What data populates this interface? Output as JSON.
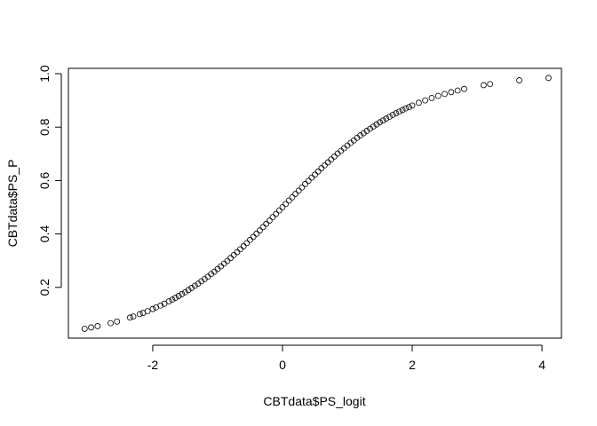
{
  "chart_data": {
    "type": "scatter",
    "title": "",
    "xlabel": "CBTdata$PS_logit",
    "ylabel": "CBTdata$PS_P",
    "xlim": [
      -3.3,
      4.3
    ],
    "ylim": [
      0.01,
      1.02
    ],
    "xticks": [
      -2,
      0,
      2,
      4
    ],
    "yticks": [
      0.2,
      0.4,
      0.6,
      0.8,
      1.0
    ],
    "xtick_labels": [
      "-2",
      "0",
      "2",
      "4"
    ],
    "ytick_labels": [
      "0.2",
      "0.4",
      "0.6",
      "0.8",
      "1.0"
    ],
    "grid": false,
    "marker": "open-circle",
    "x": [
      -3.05,
      -2.95,
      -2.85,
      -2.65,
      -2.55,
      -2.35,
      -2.3,
      -2.2,
      -2.15,
      -2.08,
      -2.0,
      -1.95,
      -1.88,
      -1.82,
      -1.75,
      -1.7,
      -1.65,
      -1.6,
      -1.55,
      -1.5,
      -1.45,
      -1.4,
      -1.35,
      -1.3,
      -1.25,
      -1.2,
      -1.15,
      -1.1,
      -1.05,
      -1.0,
      -0.95,
      -0.9,
      -0.85,
      -0.8,
      -0.75,
      -0.7,
      -0.65,
      -0.6,
      -0.55,
      -0.5,
      -0.45,
      -0.4,
      -0.35,
      -0.3,
      -0.25,
      -0.2,
      -0.15,
      -0.1,
      -0.05,
      0.0,
      0.05,
      0.1,
      0.15,
      0.2,
      0.25,
      0.3,
      0.35,
      0.4,
      0.45,
      0.5,
      0.55,
      0.6,
      0.65,
      0.7,
      0.75,
      0.8,
      0.85,
      0.9,
      0.95,
      1.0,
      1.05,
      1.1,
      1.15,
      1.2,
      1.25,
      1.3,
      1.35,
      1.4,
      1.45,
      1.5,
      1.55,
      1.6,
      1.65,
      1.7,
      1.75,
      1.8,
      1.85,
      1.9,
      1.95,
      2.0,
      2.1,
      2.2,
      2.3,
      2.4,
      2.5,
      2.6,
      2.7,
      2.8,
      3.1,
      3.2,
      3.65,
      4.1
    ],
    "y": [
      0.045,
      0.05,
      0.055,
      0.066,
      0.072,
      0.087,
      0.091,
      0.1,
      0.104,
      0.111,
      0.119,
      0.125,
      0.132,
      0.139,
      0.148,
      0.154,
      0.161,
      0.168,
      0.175,
      0.182,
      0.19,
      0.198,
      0.206,
      0.214,
      0.223,
      0.231,
      0.24,
      0.25,
      0.259,
      0.269,
      0.279,
      0.289,
      0.299,
      0.31,
      0.321,
      0.332,
      0.343,
      0.354,
      0.366,
      0.378,
      0.389,
      0.401,
      0.413,
      0.426,
      0.438,
      0.45,
      0.463,
      0.475,
      0.488,
      0.5,
      0.512,
      0.525,
      0.537,
      0.55,
      0.562,
      0.574,
      0.587,
      0.599,
      0.611,
      0.622,
      0.634,
      0.646,
      0.657,
      0.668,
      0.679,
      0.69,
      0.701,
      0.711,
      0.721,
      0.731,
      0.741,
      0.75,
      0.76,
      0.769,
      0.777,
      0.786,
      0.794,
      0.802,
      0.81,
      0.818,
      0.825,
      0.832,
      0.839,
      0.846,
      0.852,
      0.858,
      0.864,
      0.87,
      0.875,
      0.881,
      0.891,
      0.9,
      0.909,
      0.917,
      0.924,
      0.931,
      0.937,
      0.943,
      0.957,
      0.961,
      0.975,
      0.984
    ]
  }
}
